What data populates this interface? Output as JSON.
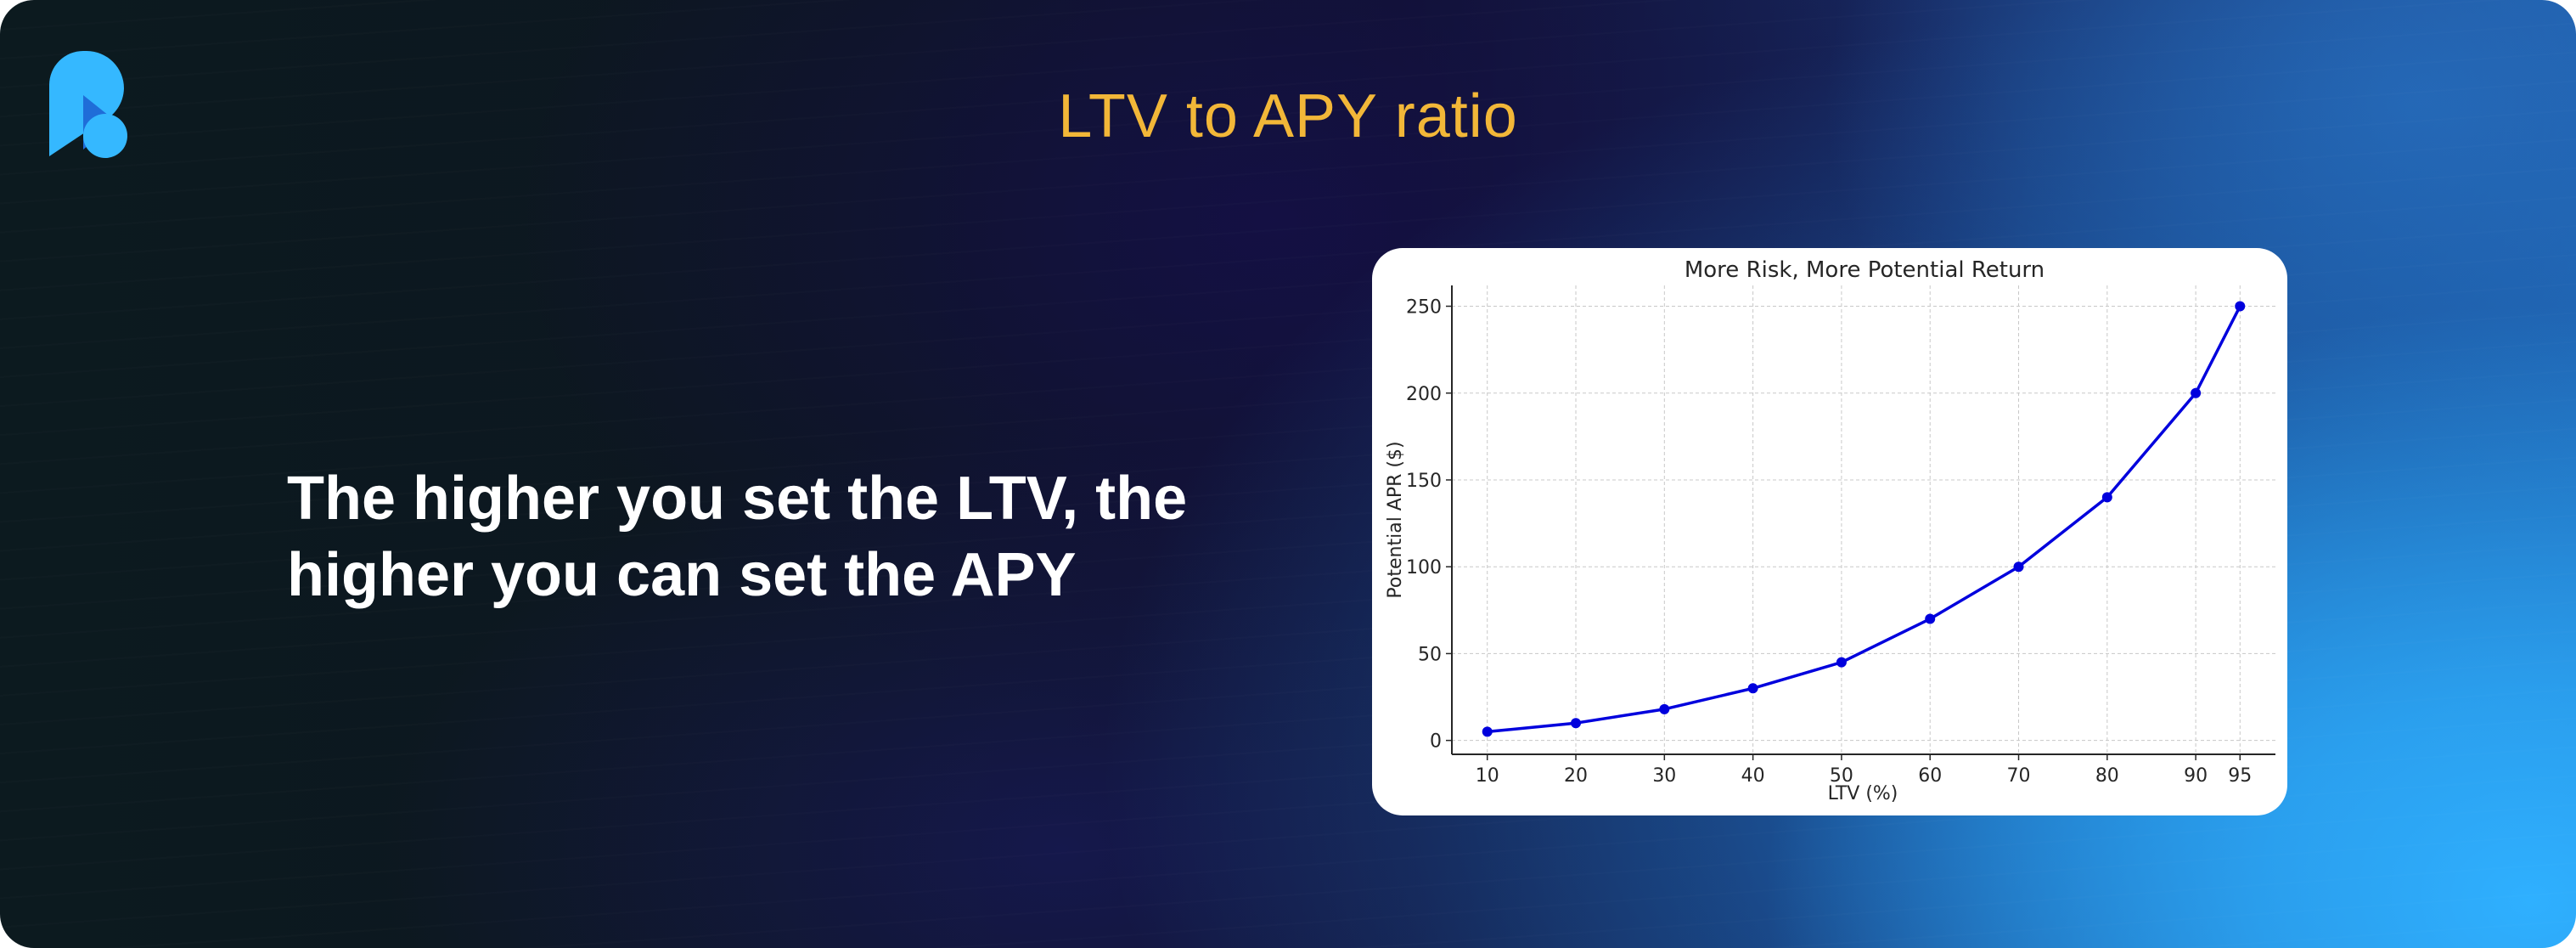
{
  "banner": {
    "title": "LTV to APY ratio",
    "headline_line1": "The higher you set the LTV, the",
    "headline_line2": "higher you can set the APY",
    "logo_icon": "brand-logo-icon"
  },
  "colors": {
    "title": "#f2b738",
    "headline": "#ffffff",
    "series": "#0000dd",
    "logo_light": "#35b8ff",
    "logo_dark": "#1f6dd8"
  },
  "chart_data": {
    "type": "line",
    "title": "More Risk, More Potential Return",
    "xlabel": "LTV (%)",
    "ylabel": "Potential APR ($)",
    "x": [
      10,
      20,
      30,
      40,
      50,
      60,
      70,
      80,
      90,
      95
    ],
    "series": [
      {
        "values": [
          5,
          10,
          18,
          30,
          45,
          70,
          100,
          140,
          200,
          250
        ]
      }
    ],
    "xticks": [
      10,
      20,
      30,
      40,
      50,
      60,
      70,
      80,
      90,
      95
    ],
    "yticks": [
      0,
      50,
      100,
      150,
      200,
      250
    ],
    "xlim": [
      6,
      99
    ],
    "ylim": [
      -8,
      262
    ],
    "grid": true,
    "legend": "none"
  }
}
